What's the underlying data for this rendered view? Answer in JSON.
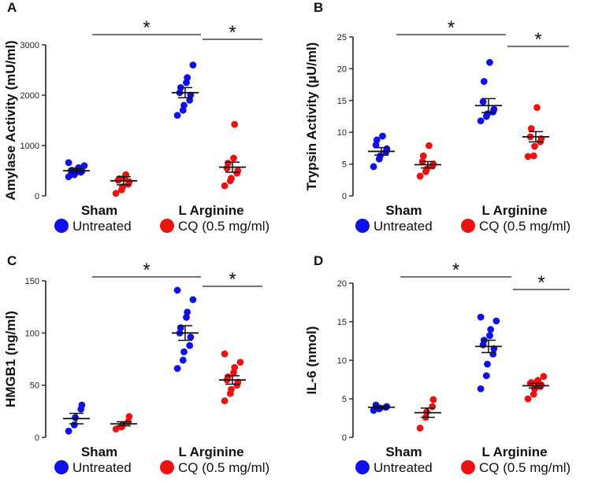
{
  "legend": {
    "untreated_label": "Untreated",
    "cq_label": "CQ (0.5 mg/ml)",
    "untreated_color": "#1010ee",
    "cq_color": "#ee1111"
  },
  "significance_marker": "*",
  "chart_data": [
    {
      "panel": "A",
      "type": "scatter",
      "ylabel": "Amylase Activity (mU/ml)",
      "ylim": [
        0,
        3000
      ],
      "yticks": [
        0,
        1000,
        2000,
        3000
      ],
      "categories": [
        "Sham",
        "L Arginine"
      ],
      "series": [
        {
          "name": "Untreated",
          "groups": [
            {
              "category": "Sham",
              "values": [
                380,
                420,
                450,
                470,
                490,
                500,
                510,
                530,
                560,
                600,
                660
              ],
              "mean": 500,
              "sem": 40
            },
            {
              "category": "L Arginine",
              "values": [
                1600,
                1700,
                1800,
                1900,
                2000,
                2050,
                2150,
                2250,
                2350,
                2600
              ],
              "mean": 2050,
              "sem": 100
            }
          ]
        },
        {
          "name": "CQ (0.5 mg/ml)",
          "groups": [
            {
              "category": "Sham",
              "values": [
                50,
                120,
                180,
                230,
                280,
                310,
                340,
                380,
                420
              ],
              "mean": 300,
              "sem": 80
            },
            {
              "category": "L Arginine",
              "values": [
                200,
                300,
                350,
                450,
                500,
                550,
                650,
                750,
                1420
              ],
              "mean": 570,
              "sem": 100
            }
          ]
        }
      ]
    },
    {
      "panel": "B",
      "type": "scatter",
      "ylabel": "Trypsin Activity (µU/ml)",
      "ylim": [
        0,
        25
      ],
      "yticks": [
        0,
        5,
        10,
        15,
        20,
        25
      ],
      "categories": [
        "Sham",
        "L Arginine"
      ],
      "series": [
        {
          "name": "Untreated",
          "groups": [
            {
              "category": "Sham",
              "values": [
                4.6,
                5.8,
                6.3,
                6.9,
                7.4,
                8.0,
                8.8,
                9.4
              ],
              "mean": 7.0,
              "sem": 0.6
            },
            {
              "category": "L Arginine",
              "values": [
                11.8,
                12.5,
                12.9,
                13.2,
                13.6,
                14.8,
                18.0,
                21.0
              ],
              "mean": 14.2,
              "sem": 1.1
            }
          ]
        },
        {
          "name": "CQ (0.5 mg/ml)",
          "groups": [
            {
              "category": "Sham",
              "values": [
                3.1,
                3.8,
                4.2,
                4.7,
                5.0,
                5.4,
                6.3,
                7.9
              ],
              "mean": 4.9,
              "sem": 0.5
            },
            {
              "category": "L Arginine",
              "values": [
                6.2,
                6.3,
                7.8,
                8.5,
                9.0,
                9.3,
                10.6,
                13.9
              ],
              "mean": 9.3,
              "sem": 0.8
            }
          ]
        }
      ]
    },
    {
      "panel": "C",
      "type": "scatter",
      "ylabel": "HMGB1 (ng/ml)",
      "ylim": [
        0,
        150
      ],
      "yticks": [
        0,
        50,
        100,
        150
      ],
      "categories": [
        "Sham",
        "L Arginine"
      ],
      "series": [
        {
          "name": "Untreated",
          "groups": [
            {
              "category": "Sham",
              "values": [
                6,
                12,
                19,
                27,
                31
              ],
              "mean": 18,
              "sem": 5
            },
            {
              "category": "L Arginine",
              "values": [
                66,
                74,
                82,
                88,
                96,
                100,
                105,
                115,
                120,
                132,
                141
              ],
              "mean": 100,
              "sem": 7
            }
          ]
        },
        {
          "name": "CQ (0.5 mg/ml)",
          "groups": [
            {
              "category": "Sham",
              "values": [
                8,
                10,
                12,
                15,
                20
              ],
              "mean": 13,
              "sem": 2
            },
            {
              "category": "L Arginine",
              "values": [
                35,
                42,
                46,
                50,
                53,
                55,
                58,
                62,
                67,
                72,
                80
              ],
              "mean": 55,
              "sem": 4
            }
          ]
        }
      ]
    },
    {
      "panel": "D",
      "type": "scatter",
      "ylabel": "IL-6 (nmol)",
      "ylim": [
        0,
        20
      ],
      "yticks": [
        0,
        5,
        10,
        15,
        20
      ],
      "categories": [
        "Sham",
        "L Arginine"
      ],
      "series": [
        {
          "name": "Untreated",
          "groups": [
            {
              "category": "Sham",
              "values": [
                3.5,
                3.7,
                3.8,
                3.9,
                4.0,
                4.2
              ],
              "mean": 3.9,
              "sem": 0.15
            },
            {
              "category": "L Arginine",
              "values": [
                6.3,
                8.0,
                9.5,
                10.8,
                11.5,
                12.0,
                12.6,
                13.2,
                14.0,
                15.1,
                15.6
              ],
              "mean": 11.8,
              "sem": 0.8
            }
          ]
        },
        {
          "name": "CQ (0.5 mg/ml)",
          "groups": [
            {
              "category": "Sham",
              "values": [
                1.2,
                2.6,
                3.3,
                4.0,
                4.9
              ],
              "mean": 3.2,
              "sem": 0.6
            },
            {
              "category": "L Arginine",
              "values": [
                5.0,
                5.6,
                6.3,
                6.6,
                6.8,
                7.0,
                7.1,
                7.2,
                7.4,
                7.9
              ],
              "mean": 6.7,
              "sem": 0.3
            }
          ]
        }
      ]
    }
  ]
}
